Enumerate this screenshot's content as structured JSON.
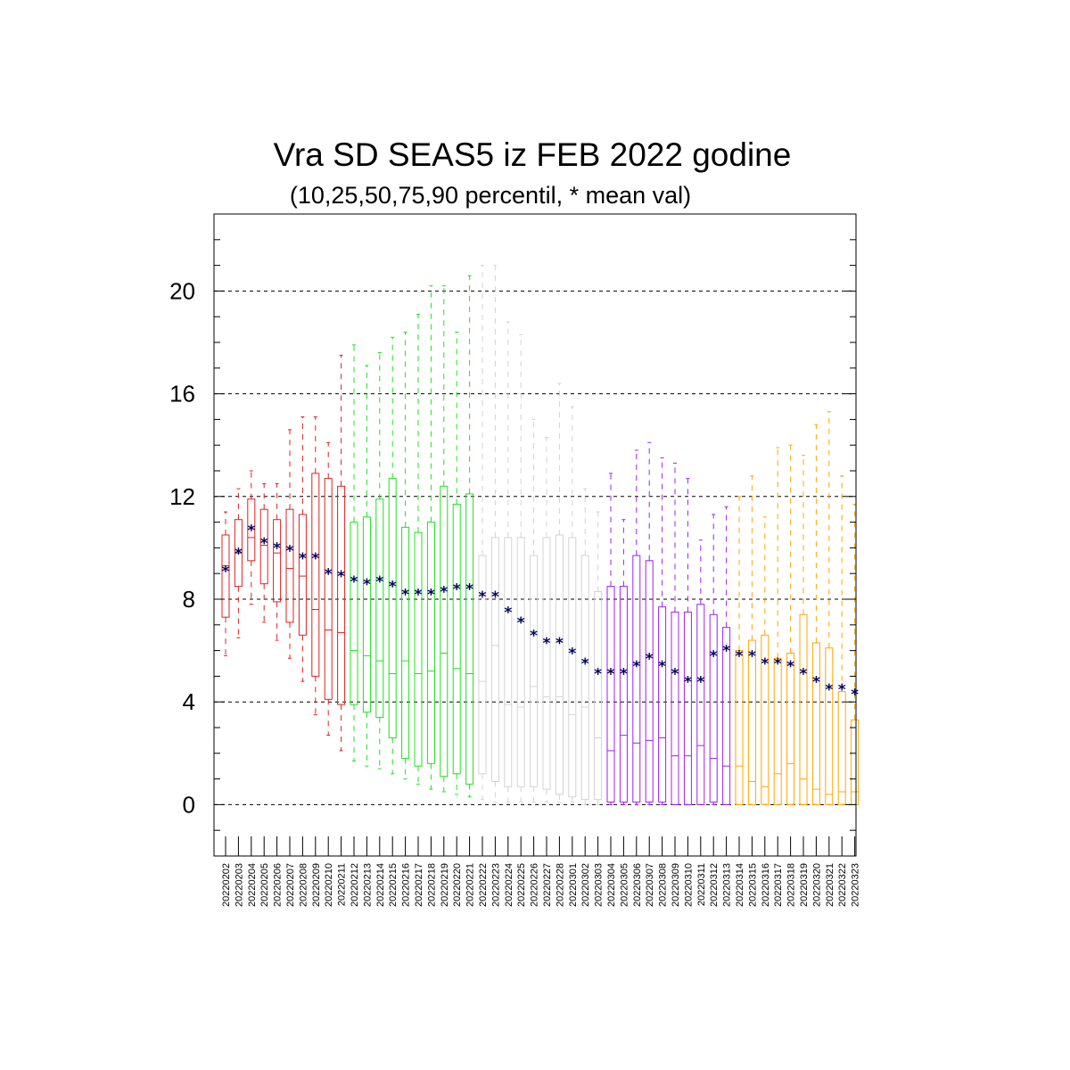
{
  "chart_data": {
    "type": "boxplot",
    "title": "Vra SD SEAS5 iz FEB 2022 godine",
    "subtitle": "(10,25,50,75,90 percentil, * mean val)",
    "ylim": [
      -2,
      23
    ],
    "yticks": [
      0,
      4,
      8,
      12,
      16,
      20
    ],
    "grid": "horizontal dashed at major y ticks",
    "mean_marker": "*",
    "mean_color": "#000060",
    "categories": [
      "20220202",
      "20220203",
      "20220204",
      "20220205",
      "20220206",
      "20220207",
      "20220208",
      "20220209",
      "20220210",
      "20220211",
      "20220212",
      "20220213",
      "20220214",
      "20220215",
      "20220216",
      "20220217",
      "20220218",
      "20220219",
      "20220220",
      "20220221",
      "20220222",
      "20220223",
      "20220224",
      "20220225",
      "20220226",
      "20220227",
      "20220228",
      "20220301",
      "20220302",
      "20220303",
      "20220304",
      "20220305",
      "20220306",
      "20220307",
      "20220308",
      "20220309",
      "20220310",
      "20220311",
      "20220312",
      "20220313",
      "20220314",
      "20220315",
      "20220316",
      "20220317",
      "20220318",
      "20220319",
      "20220320",
      "20220321",
      "20220322",
      "20220323"
    ],
    "colors": [
      "#e02020",
      "#e02020",
      "#e02020",
      "#e02020",
      "#e02020",
      "#e02020",
      "#e02020",
      "#e02020",
      "#e02020",
      "#e02020",
      "#20e020",
      "#20e020",
      "#20e020",
      "#20e020",
      "#20e020",
      "#20e020",
      "#20e020",
      "#20e020",
      "#20e020",
      "#20e020",
      "#d3d3d3",
      "#d3d3d3",
      "#d3d3d3",
      "#d3d3d3",
      "#d3d3d3",
      "#d3d3d3",
      "#d3d3d3",
      "#d3d3d3",
      "#d3d3d3",
      "#d3d3d3",
      "#a020f0",
      "#a020f0",
      "#a020f0",
      "#a020f0",
      "#a020f0",
      "#a020f0",
      "#a020f0",
      "#a020f0",
      "#a020f0",
      "#a020f0",
      "#ffa500",
      "#ffa500",
      "#ffa500",
      "#ffa500",
      "#ffa500",
      "#ffa500",
      "#ffa500",
      "#ffa500",
      "#ffa500",
      "#ffa500"
    ],
    "p10": [
      5.8,
      6.5,
      7.8,
      7.1,
      6.4,
      5.7,
      4.8,
      3.5,
      2.7,
      2.1,
      1.7,
      1.5,
      1.4,
      1.2,
      1.0,
      0.8,
      0.6,
      0.5,
      0.4,
      0.3,
      0.2,
      0.1,
      0.1,
      0.1,
      0.1,
      0.1,
      0.1,
      0.1,
      0.0,
      0.0,
      0.0,
      0.0,
      0.0,
      0.0,
      0.0,
      0.0,
      0.0,
      0.0,
      0.0,
      0.0,
      0.0,
      0.0,
      0.0,
      0.0,
      0.0,
      0.0,
      0.0,
      0.0,
      0.0,
      0.0
    ],
    "p25": [
      7.3,
      8.5,
      9.5,
      8.6,
      7.9,
      7.1,
      6.6,
      5.0,
      4.1,
      3.9,
      3.9,
      3.6,
      3.4,
      2.6,
      1.8,
      1.5,
      1.6,
      1.1,
      1.2,
      0.8,
      1.2,
      0.9,
      0.7,
      0.7,
      0.7,
      0.6,
      0.4,
      0.3,
      0.2,
      0.2,
      0.1,
      0.1,
      0.1,
      0.1,
      0.1,
      0.0,
      0.0,
      0.0,
      0.1,
      0.0,
      0.0,
      0.0,
      0.0,
      0.0,
      0.0,
      0.0,
      0.0,
      0.0,
      0.0,
      0.0
    ],
    "p50": [
      9.3,
      9.8,
      10.4,
      10.1,
      9.8,
      9.2,
      8.9,
      7.6,
      6.8,
      6.7,
      6.0,
      5.8,
      5.6,
      5.1,
      5.6,
      5.1,
      5.2,
      5.9,
      5.3,
      5.1,
      4.8,
      6.2,
      3.9,
      3.8,
      4.6,
      4.2,
      4.2,
      3.5,
      3.8,
      2.6,
      2.1,
      2.7,
      2.4,
      2.5,
      2.6,
      1.9,
      1.9,
      2.3,
      1.8,
      1.5,
      1.5,
      0.9,
      0.7,
      1.2,
      1.6,
      1.0,
      0.6,
      0.4,
      0.5,
      0.5
    ],
    "p75": [
      10.5,
      11.1,
      11.9,
      11.5,
      11.1,
      11.5,
      11.3,
      12.9,
      12.7,
      12.4,
      11.0,
      11.2,
      11.9,
      12.7,
      10.8,
      10.6,
      11.0,
      12.4,
      11.7,
      12.1,
      9.7,
      10.4,
      10.4,
      10.4,
      9.7,
      10.4,
      10.5,
      10.4,
      9.7,
      8.3,
      8.5,
      8.5,
      9.7,
      9.5,
      7.7,
      7.5,
      7.5,
      7.8,
      7.4,
      6.9,
      6.0,
      6.4,
      6.6,
      5.7,
      5.9,
      7.4,
      6.3,
      6.1,
      4.4,
      3.3
    ],
    "p90": [
      11.4,
      12.3,
      13.0,
      12.5,
      12.5,
      14.6,
      15.1,
      15.1,
      14.1,
      17.5,
      17.9,
      17.1,
      17.6,
      18.2,
      18.4,
      19.1,
      20.2,
      20.2,
      18.4,
      20.6,
      21.0,
      21.0,
      18.8,
      18.3,
      15.0,
      14.3,
      16.4,
      15.5,
      12.3,
      11.4,
      12.9,
      11.1,
      13.8,
      14.1,
      13.5,
      13.3,
      12.7,
      10.3,
      11.3,
      11.6,
      12.0,
      12.8,
      11.2,
      13.9,
      14.0,
      13.6,
      14.8,
      15.3,
      12.8,
      11.7
    ],
    "mean": [
      9.2,
      9.9,
      10.8,
      10.3,
      10.1,
      10.0,
      9.7,
      9.7,
      9.1,
      9.0,
      8.8,
      8.7,
      8.8,
      8.6,
      8.3,
      8.3,
      8.3,
      8.4,
      8.5,
      8.5,
      8.2,
      8.2,
      7.6,
      7.2,
      6.7,
      6.4,
      6.4,
      6.0,
      5.6,
      5.2,
      5.2,
      5.2,
      5.5,
      5.8,
      5.5,
      5.2,
      4.9,
      4.9,
      5.9,
      6.1,
      5.9,
      5.9,
      5.6,
      5.6,
      5.5,
      5.2,
      4.9,
      4.6,
      4.6,
      4.4
    ]
  }
}
